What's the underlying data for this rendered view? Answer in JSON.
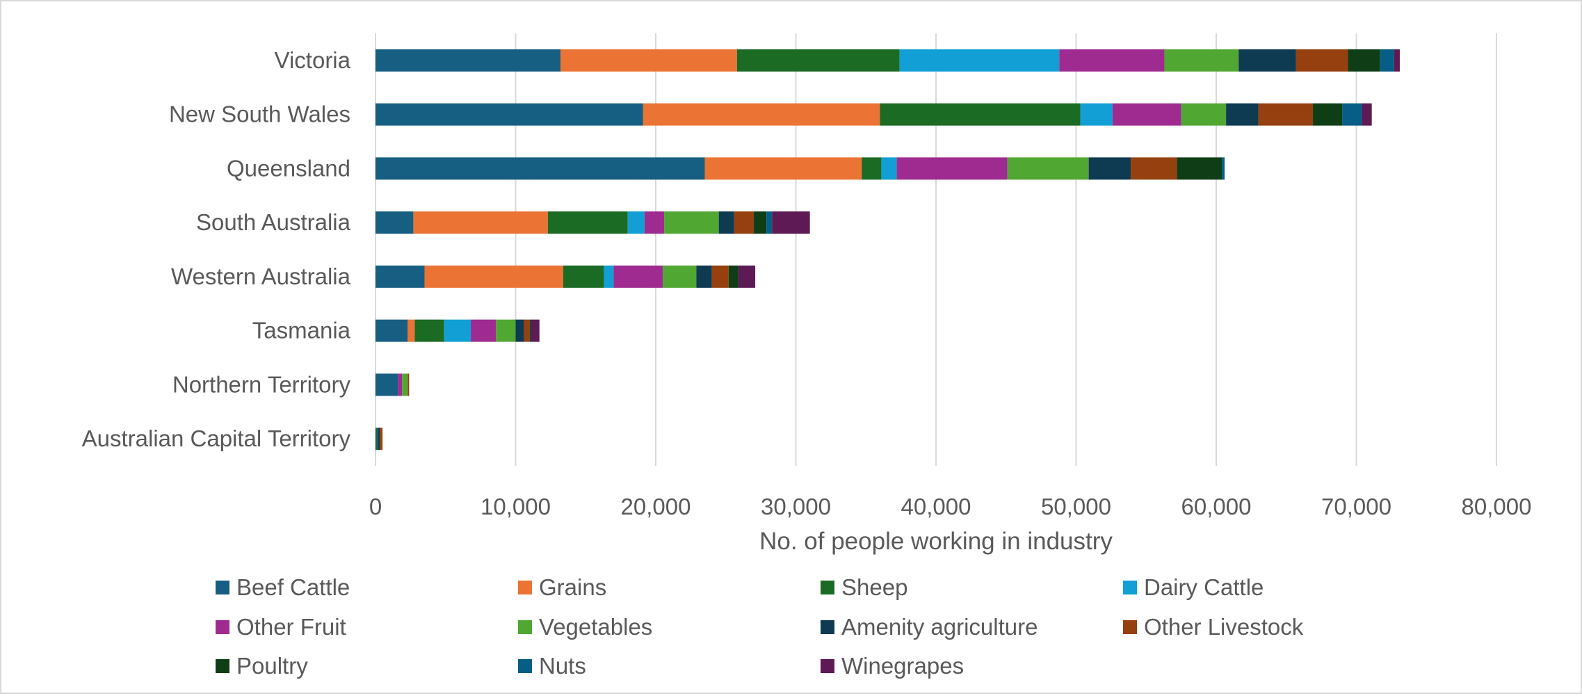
{
  "chart_data": {
    "type": "bar",
    "orientation": "horizontal",
    "stacked": true,
    "title": "",
    "xlabel": "No. of people working in industry",
    "ylabel": "",
    "xlim": [
      0,
      80000
    ],
    "xticks": [
      0,
      10000,
      20000,
      30000,
      40000,
      50000,
      60000,
      70000,
      80000
    ],
    "xtick_labels": [
      "0",
      "10,000",
      "20,000",
      "30,000",
      "40,000",
      "50,000",
      "60,000",
      "70,000",
      "80,000"
    ],
    "grid": "vertical",
    "legend_position": "bottom",
    "categories": [
      "Victoria",
      "New South Wales",
      "Queensland",
      "South Australia",
      "Western Australia",
      "Tasmania",
      "Northern Territory",
      "Australian Capital Territory"
    ],
    "series": [
      {
        "name": "Beef Cattle",
        "color": "#175f82",
        "values": [
          13200,
          19100,
          23500,
          2700,
          3500,
          2300,
          1600,
          100
        ]
      },
      {
        "name": "Grains",
        "color": "#eb7334",
        "values": [
          12600,
          16900,
          11200,
          9600,
          9900,
          500,
          0,
          0
        ]
      },
      {
        "name": "Sheep",
        "color": "#1b6b24",
        "values": [
          11600,
          14300,
          1400,
          5700,
          2900,
          2100,
          0,
          100
        ]
      },
      {
        "name": "Dairy Cattle",
        "color": "#119fd6",
        "values": [
          11400,
          2300,
          1100,
          1200,
          700,
          1900,
          0,
          0
        ]
      },
      {
        "name": "Other Fruit",
        "color": "#9f2b91",
        "values": [
          7500,
          4900,
          7900,
          1400,
          3500,
          1800,
          300,
          0
        ]
      },
      {
        "name": "Vegetables",
        "color": "#50a732",
        "values": [
          5300,
          3200,
          5800,
          3900,
          2400,
          1400,
          400,
          0
        ]
      },
      {
        "name": "Amenity agriculture",
        "color": "#0e3a52",
        "values": [
          4100,
          2300,
          3000,
          1100,
          1100,
          600,
          0,
          100
        ]
      },
      {
        "name": "Other Livestock",
        "color": "#964010",
        "values": [
          3700,
          3900,
          3300,
          1400,
          1200,
          400,
          100,
          200
        ]
      },
      {
        "name": "Poultry",
        "color": "#0f3e16",
        "values": [
          2300,
          2100,
          3200,
          900,
          700,
          100,
          0,
          0
        ]
      },
      {
        "name": "Nuts",
        "color": "#065e86",
        "values": [
          1000,
          1400,
          200,
          400,
          0,
          0,
          0,
          0
        ]
      },
      {
        "name": "Winegrapes",
        "color": "#5e1a55",
        "values": [
          400,
          700,
          0,
          2700,
          1200,
          600,
          0,
          0
        ]
      }
    ]
  }
}
